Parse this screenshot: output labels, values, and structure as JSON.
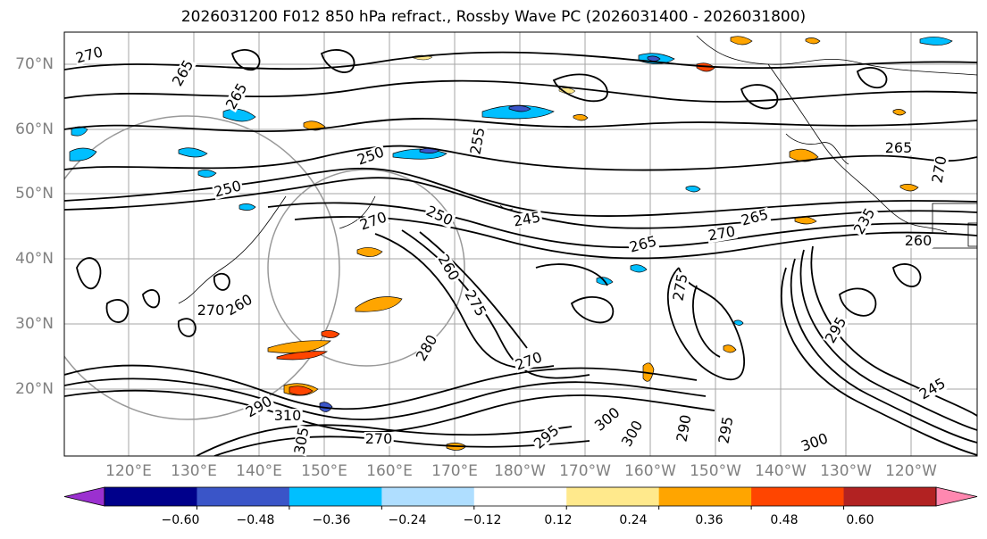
{
  "title": "2026031200 F012 850 hPa refract., Rossby Wave PC (2026031400 - 2026031800)",
  "lat_labels": [
    "70°N",
    "60°N",
    "50°N",
    "40°N",
    "30°N",
    "20°N"
  ],
  "lon_labels": [
    "120°E",
    "130°E",
    "140°E",
    "150°E",
    "160°E",
    "170°E",
    "180°W",
    "170°W",
    "160°W",
    "150°W",
    "140°W",
    "130°W",
    "120°W"
  ],
  "colorbar": {
    "ticks": [
      "−0.60",
      "−0.48",
      "−0.36",
      "−0.24",
      "−0.12",
      "0.12",
      "0.24",
      "0.36",
      "0.48",
      "0.60"
    ],
    "colors": [
      "#9b30d0",
      "#00008b",
      "#3a55c8",
      "#00bfff",
      "#afdeff",
      "#ffffff",
      "#ffe98c",
      "#ffa500",
      "#ff4500",
      "#b22222",
      "#ff88b0"
    ]
  },
  "contour_labels": [
    "270",
    "265",
    "265",
    "250",
    "255",
    "250",
    "270",
    "250",
    "245",
    "265",
    "270",
    "265",
    "270",
    "265",
    "275",
    "260",
    "270",
    "275",
    "280",
    "260",
    "270",
    "290",
    "310",
    "305",
    "300",
    "295",
    "300",
    "290",
    "295",
    "300",
    "295",
    "245",
    "235",
    "260",
    "270"
  ],
  "colors": {
    "contour": "#000000",
    "grid": "#808080",
    "axis_text": "#808080"
  }
}
